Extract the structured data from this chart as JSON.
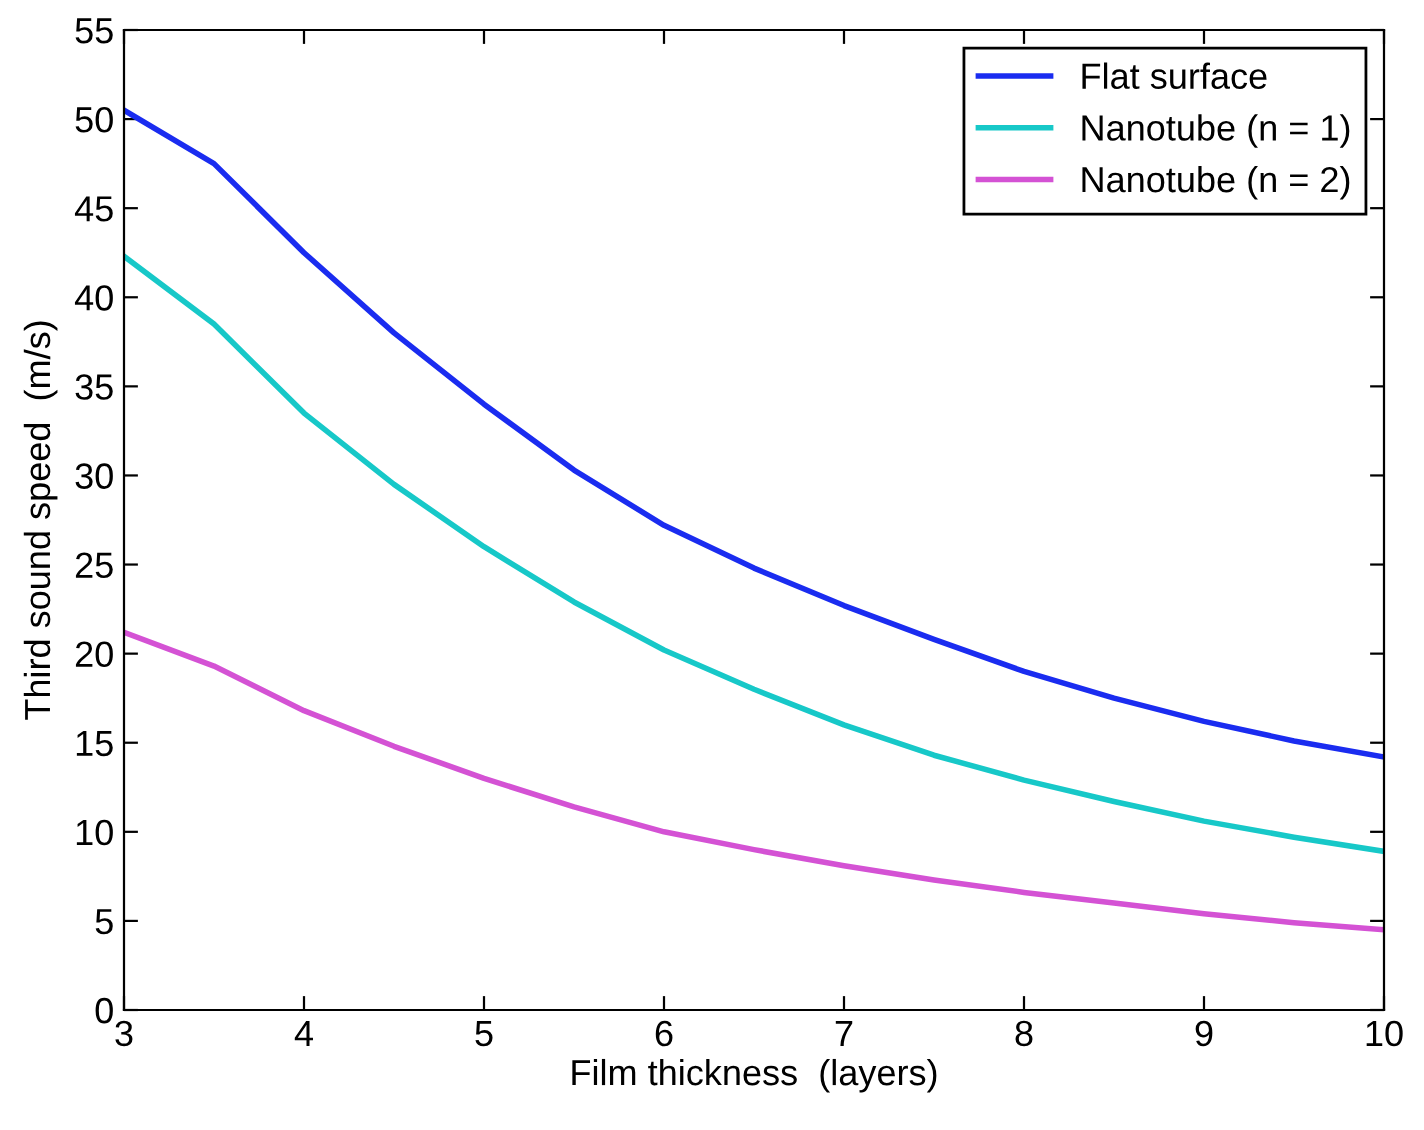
{
  "chart_data": {
    "type": "line",
    "xlabel": "Film thickness  (layers)",
    "ylabel": "Third sound speed  (m/s)",
    "x": [
      3,
      3.5,
      4,
      4.5,
      5,
      5.5,
      6,
      6.5,
      7,
      7.5,
      8,
      8.5,
      9,
      9.5,
      10
    ],
    "series": [
      {
        "name": "Flat surface",
        "color": "#1a2cf0",
        "values": [
          50.5,
          47.5,
          42.5,
          38,
          34,
          30.3,
          27.2,
          24.8,
          22.7,
          20.8,
          19,
          17.5,
          16.2,
          15.1,
          14.2
        ]
      },
      {
        "name": "Nanotube (n = 1)",
        "color": "#17c8c8",
        "values": [
          42.3,
          38.5,
          33.5,
          29.5,
          26,
          22.9,
          20.2,
          18,
          16,
          14.3,
          12.9,
          11.7,
          10.6,
          9.7,
          8.9
        ]
      },
      {
        "name": "Nanotube (n = 2)",
        "color": "#d452d4",
        "values": [
          21.2,
          19.3,
          16.8,
          14.8,
          13,
          11.4,
          10,
          9,
          8.1,
          7.3,
          6.6,
          6,
          5.4,
          4.9,
          4.5
        ]
      }
    ],
    "xlim": [
      3,
      10
    ],
    "xticks": [
      3,
      4,
      5,
      6,
      7,
      8,
      9,
      10
    ],
    "ylim": [
      0,
      55
    ],
    "yticks": [
      0,
      5,
      10,
      15,
      20,
      25,
      30,
      35,
      40,
      45,
      50,
      55
    ],
    "legend": "top right",
    "grid": false,
    "marker": "none",
    "line_style": "solid"
  }
}
